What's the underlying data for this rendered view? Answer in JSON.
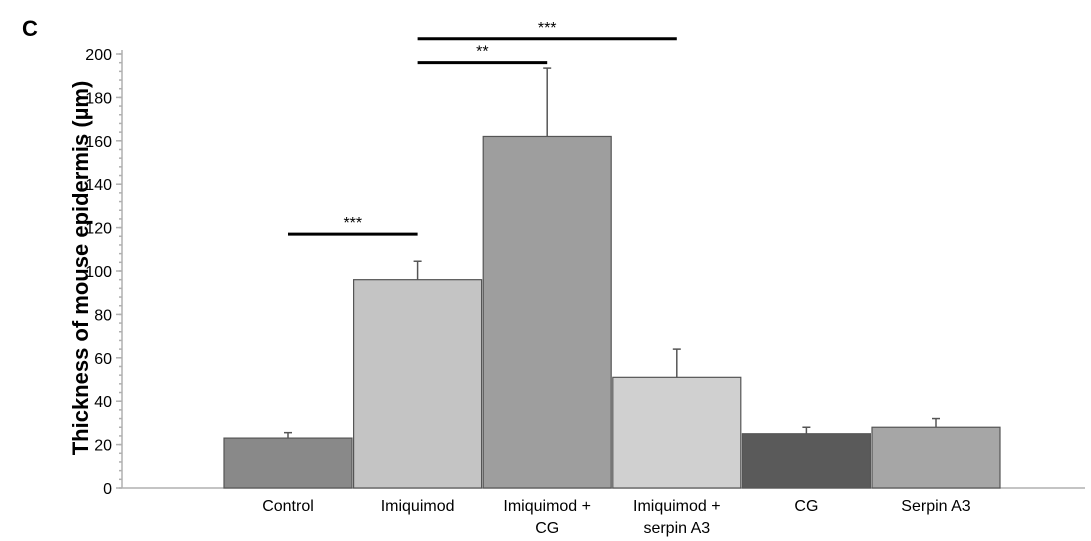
{
  "panel_label": "C",
  "chart_data": {
    "type": "bar",
    "title": "",
    "xlabel": "",
    "ylabel": "Thickness of mouse epidermis (µm)",
    "ylim": [
      0,
      200
    ],
    "yticks": [
      0,
      20,
      40,
      60,
      80,
      100,
      120,
      140,
      160,
      180,
      200
    ],
    "grid": false,
    "legend": "none",
    "categories": [
      [
        "Control"
      ],
      [
        "Imiquimod"
      ],
      [
        "Imiquimod +",
        "CG"
      ],
      [
        "Imiquimod +",
        "serpin A3"
      ],
      [
        "CG"
      ],
      [
        "Serpin A3"
      ]
    ],
    "values": [
      23,
      96,
      162,
      51,
      25,
      28
    ],
    "error": [
      2.5,
      8.5,
      31.5,
      13,
      3,
      4
    ],
    "colors": [
      "#898989",
      "#c4c4c4",
      "#9e9e9e",
      "#d0d0d0",
      "#5a5a5a",
      "#a6a6a6"
    ],
    "significance": [
      {
        "from": 0,
        "to": 1,
        "label": "***",
        "y": 117
      },
      {
        "from": 1,
        "to": 2,
        "label": "**",
        "y": 196
      },
      {
        "from": 1,
        "to": 3,
        "label": "***",
        "y": 207
      }
    ]
  }
}
